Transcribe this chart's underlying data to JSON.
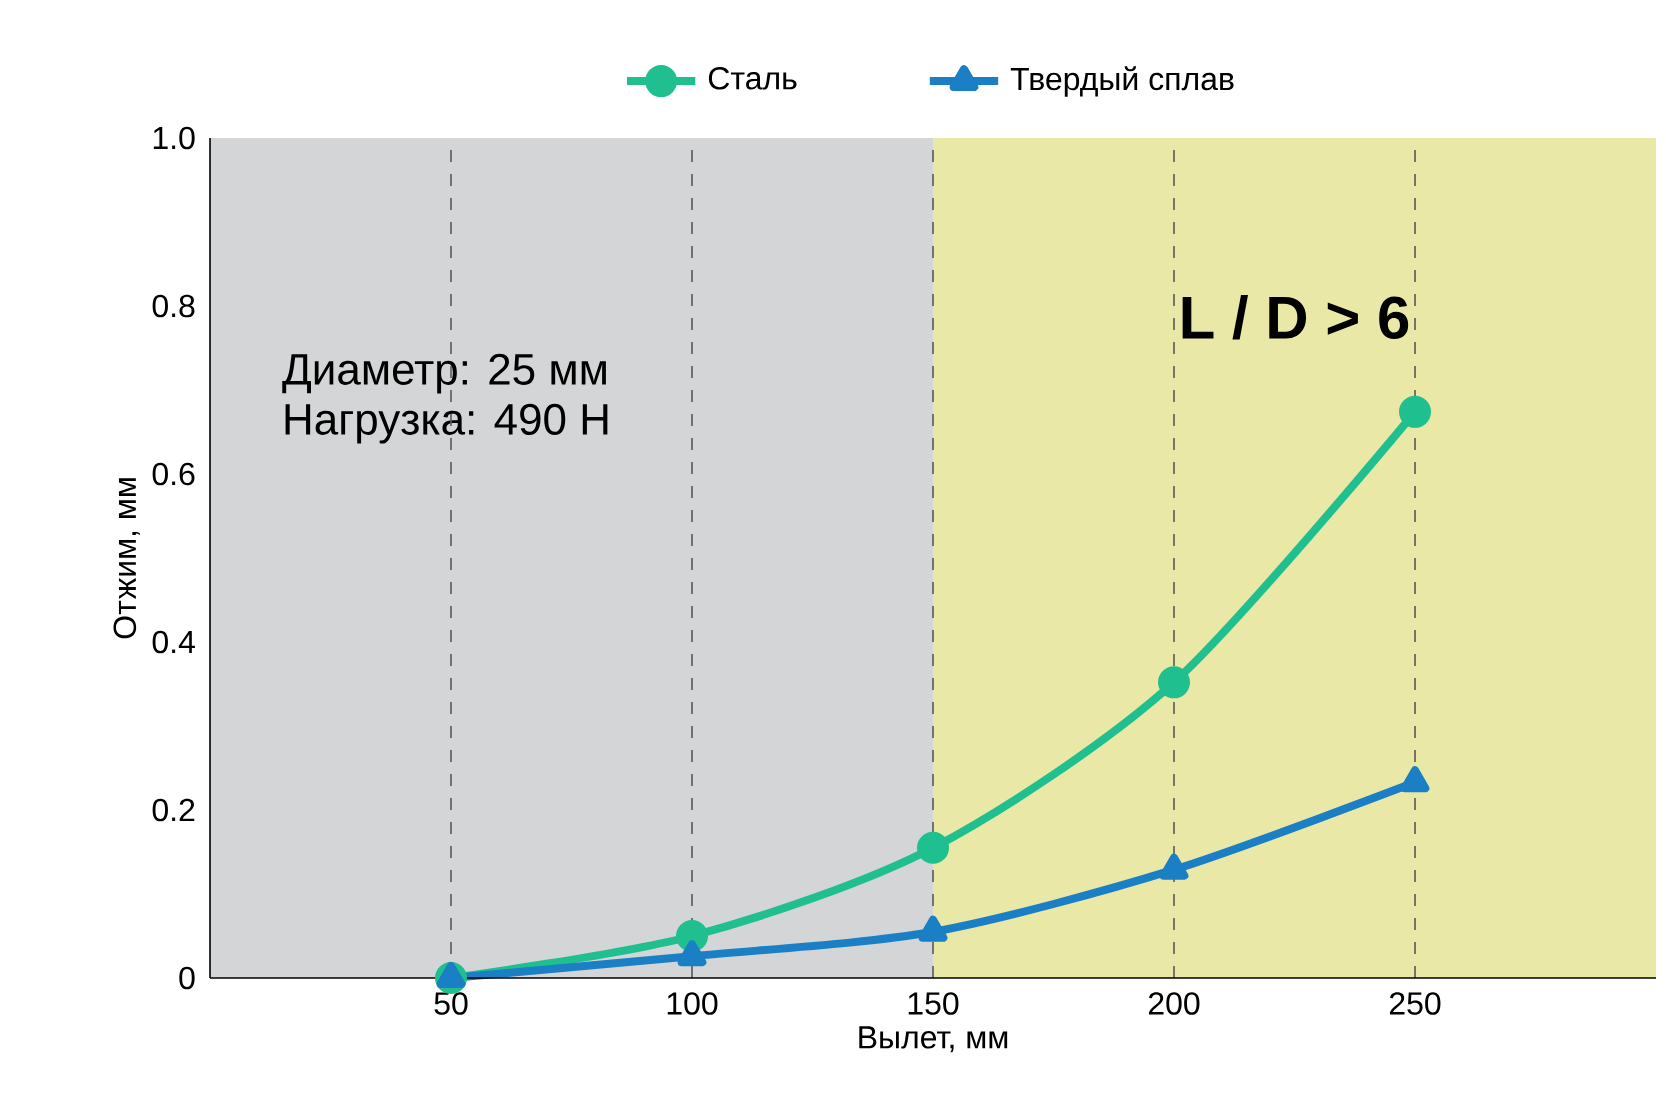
{
  "chart_data": {
    "type": "line",
    "xlabel": "Вылет, мм",
    "ylabel": "Отжим, мм",
    "x": [
      50,
      100,
      150,
      200,
      250
    ],
    "series": [
      {
        "name": "Сталь",
        "color": "#1fbf8f",
        "marker": "circle",
        "values": [
          0,
          0.05,
          0.155,
          0.352,
          0.674
        ]
      },
      {
        "name": "Твердый сплав",
        "color": "#1a7fc4",
        "marker": "triangle",
        "values": [
          0,
          0.026,
          0.055,
          0.129,
          0.233
        ]
      }
    ],
    "xlim": [
      0,
      300
    ],
    "xticks": [
      50,
      100,
      150,
      200,
      250
    ],
    "ylim": [
      0,
      1.0
    ],
    "yticks": [
      0,
      0.2,
      0.4,
      0.6,
      0.8,
      {
        "value": 1.0,
        "label": "1.0"
      }
    ],
    "bands": [
      {
        "axis": "x",
        "from": 0,
        "to": 150,
        "color": "#d4d5d6"
      },
      {
        "axis": "x",
        "from": 150,
        "to": 300,
        "color": "#e9e8a6",
        "label": "L / D > 6"
      }
    ],
    "annotations": [
      "Диаметр: 25 мм",
      "Нагрузка: 490 Н"
    ],
    "grid": "x",
    "legend": "top"
  }
}
